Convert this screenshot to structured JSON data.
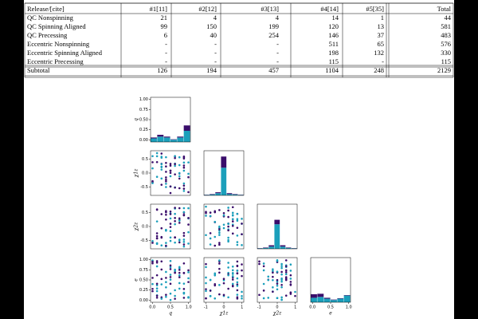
{
  "table": {
    "header": [
      "Release/[cite]",
      "#1[11]",
      "#2[12]",
      "#3[13]",
      "#4[14]",
      "#5[35]",
      "Total"
    ],
    "rows": [
      [
        "QC Nonspinning",
        21,
        4,
        4,
        14,
        1,
        44
      ],
      [
        "QC Spinning Aligned",
        99,
        150,
        199,
        120,
        13,
        581
      ],
      [
        "QC Precessing",
        6,
        40,
        254,
        146,
        37,
        483
      ],
      [
        "Eccentric Nonspinning",
        "-",
        "-",
        "-",
        511,
        65,
        576
      ],
      [
        "Eccentric Spinning Aligned",
        "-",
        "-",
        "-",
        198,
        132,
        330
      ],
      [
        "Eccentric Precessing",
        "-",
        "-",
        "-",
        115,
        "-",
        115
      ]
    ],
    "footer": [
      "Subtotal",
      126,
      194,
      457,
      1104,
      248,
      2129
    ]
  },
  "figure": {
    "axes": [
      {
        "label": "q",
        "xlim": [
          -0.05,
          1.05
        ],
        "xticks": [
          {
            "value": 0,
            "label": "0.0"
          },
          {
            "value": 0.5,
            "label": "0.5"
          },
          {
            "value": 1,
            "label": "1.0"
          }
        ],
        "ylim": [
          -0.05,
          1.05
        ],
        "yticks": [
          {
            "value": 0,
            "label": "0.00"
          },
          {
            "value": 0.25,
            "label": "0.25"
          },
          {
            "value": 0.5,
            "label": "0.50"
          },
          {
            "value": 0.75,
            "label": "0.75"
          },
          {
            "value": 1,
            "label": "1.00"
          }
        ]
      },
      {
        "label": "χ1z",
        "xlim": [
          -1.1,
          1.1
        ],
        "xticks": [
          -1,
          0,
          1
        ],
        "ylim": [
          -0.8,
          0.8
        ],
        "yticks": [
          0.5,
          {
            "value": 0,
            "label": "0.0"
          },
          -0.5
        ]
      },
      {
        "label": "χ2z",
        "xlim": [
          -1.1,
          1.1
        ],
        "xticks": [
          -1,
          0,
          1
        ],
        "ylim": [
          -0.8,
          0.8
        ],
        "yticks": [
          0.5,
          {
            "value": 0,
            "label": "0.0"
          },
          -0.5
        ]
      },
      {
        "label": "e",
        "xlim": [
          -0.05,
          1.05
        ],
        "xticks": [
          {
            "value": 0,
            "label": "0.0"
          },
          {
            "value": 0.5,
            "label": "0.5"
          },
          {
            "value": 1,
            "label": "1.0"
          }
        ],
        "ylim": [
          -0.05,
          1.05
        ],
        "yticks": [
          {
            "value": 0,
            "label": "0.00"
          },
          {
            "value": 0.25,
            "label": "0.25"
          },
          {
            "value": 0.5,
            "label": "0.50"
          },
          {
            "value": 0.75,
            "label": "0.75"
          },
          {
            "value": 1,
            "label": "1.00"
          }
        ]
      }
    ],
    "histograms": [
      {
        "teal": [
          0.08,
          0.12,
          0.1,
          0.05,
          0.1,
          0.25
        ],
        "purple": [
          0.02,
          0.04,
          0.02,
          0.01,
          0.02,
          0.12
        ]
      },
      {
        "teal": [
          0.01,
          0.02,
          0.05,
          0.62,
          0.03,
          0.02,
          0.01
        ],
        "purple": [
          0.005,
          0.01,
          0.02,
          0.25,
          0.02,
          0.01,
          0.005
        ]
      },
      {
        "teal": [
          0.01,
          0.02,
          0.05,
          0.55,
          0.05,
          0.02,
          0.01
        ],
        "purple": [
          0.005,
          0.01,
          0.03,
          0.1,
          0.03,
          0.01,
          0.005
        ]
      },
      {
        "teal": [
          0.1,
          0.12,
          0.08,
          0.05,
          0.08,
          0.15
        ],
        "purple": [
          0.08,
          0.07,
          0.02,
          0.01,
          0.01,
          0.01
        ]
      }
    ]
  }
}
